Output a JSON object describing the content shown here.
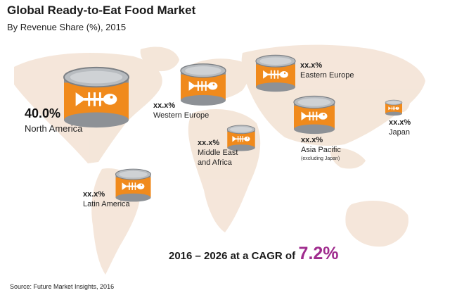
{
  "title": "Global Ready-to-Eat Food Market",
  "subtitle": "By Revenue Share (%), 2015",
  "regions": [
    {
      "id": "north-america",
      "value": "40.0%",
      "name": "North America"
    },
    {
      "id": "western-europe",
      "value": "xx.x%",
      "name": "Western Europe"
    },
    {
      "id": "eastern-europe",
      "value": "xx.x%",
      "name": "Eastern Europe"
    },
    {
      "id": "middle-east-africa",
      "value": "xx.x%",
      "name_line1": "Middle East",
      "name_line2": "and Africa"
    },
    {
      "id": "asia-pacific",
      "value": "xx.x%",
      "name": "Asia Pacific",
      "note": "(excluding Japan)"
    },
    {
      "id": "japan",
      "value": "xx.x%",
      "name": "Japan"
    },
    {
      "id": "latin-america",
      "value": "xx.x%",
      "name": "Latin America"
    }
  ],
  "cagr": {
    "text": "2016 – 2026 at a CAGR of",
    "value": "7.2%"
  },
  "source": "Source: Future Market Insights, 2016",
  "colors": {
    "can_orange": "#f08a1c",
    "can_metal": "#8d9196",
    "map_tint": "#e8c9b0",
    "cagr_accent": "#a02c8e"
  }
}
